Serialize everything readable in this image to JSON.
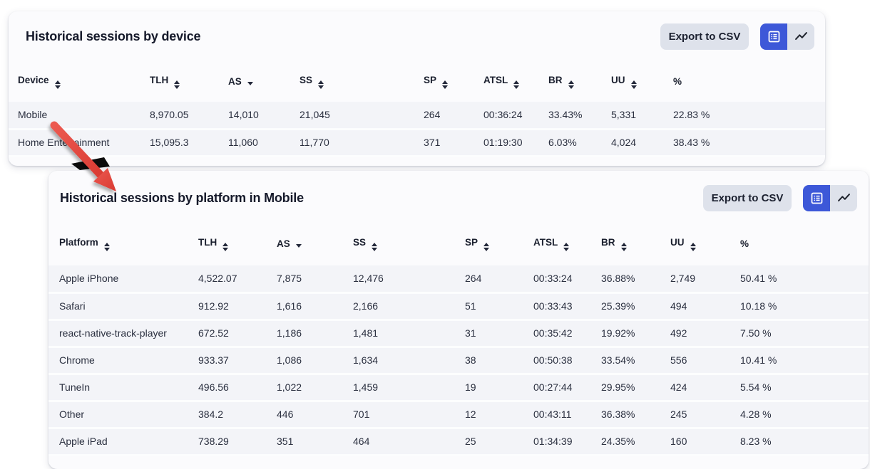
{
  "card1": {
    "title": "Historical sessions by device",
    "export_label": "Export to CSV",
    "columns": [
      {
        "label": "Device",
        "sort": "both"
      },
      {
        "label": "TLH",
        "sort": "both"
      },
      {
        "label": "AS",
        "sort": "desc"
      },
      {
        "label": "SS",
        "sort": "both"
      },
      {
        "label": "SP",
        "sort": "both"
      },
      {
        "label": "ATSL",
        "sort": "both"
      },
      {
        "label": "BR",
        "sort": "both"
      },
      {
        "label": "UU",
        "sort": "both"
      },
      {
        "label": "%",
        "sort": "none"
      }
    ],
    "rows": [
      [
        "Mobile",
        "8,970.05",
        "14,010",
        "21,045",
        "264",
        "00:36:24",
        "33.43%",
        "5,331",
        "22.83 %"
      ],
      [
        "Home Entertainment",
        "15,095.3",
        "11,060",
        "11,770",
        "371",
        "01:19:30",
        "6.03%",
        "4,024",
        "38.43 %"
      ]
    ]
  },
  "card2": {
    "title": "Historical sessions by platform in Mobile",
    "export_label": "Export to CSV",
    "columns": [
      {
        "label": "Platform",
        "sort": "both"
      },
      {
        "label": "TLH",
        "sort": "both"
      },
      {
        "label": "AS",
        "sort": "desc"
      },
      {
        "label": "SS",
        "sort": "both"
      },
      {
        "label": "SP",
        "sort": "both"
      },
      {
        "label": "ATSL",
        "sort": "both"
      },
      {
        "label": "BR",
        "sort": "both"
      },
      {
        "label": "UU",
        "sort": "both"
      },
      {
        "label": "%",
        "sort": "none"
      }
    ],
    "rows": [
      [
        "Apple iPhone",
        "4,522.07",
        "7,875",
        "12,476",
        "264",
        "00:33:24",
        "36.88%",
        "2,749",
        "50.41 %"
      ],
      [
        "Safari",
        "912.92",
        "1,616",
        "2,166",
        "51",
        "00:33:43",
        "25.39%",
        "494",
        "10.18 %"
      ],
      [
        "react-native-track-player",
        "672.52",
        "1,186",
        "1,481",
        "31",
        "00:35:42",
        "19.92%",
        "492",
        "7.50 %"
      ],
      [
        "Chrome",
        "933.37",
        "1,086",
        "1,634",
        "38",
        "00:50:38",
        "33.54%",
        "556",
        "10.41 %"
      ],
      [
        "TuneIn",
        "496.56",
        "1,022",
        "1,459",
        "19",
        "00:27:44",
        "29.95%",
        "424",
        "5.54 %"
      ],
      [
        "Other",
        "384.2",
        "446",
        "701",
        "12",
        "00:43:11",
        "36.38%",
        "245",
        "4.28 %"
      ],
      [
        "Apple iPad",
        "738.29",
        "351",
        "464",
        "25",
        "01:34:39",
        "24.35%",
        "160",
        "8.23 %"
      ]
    ]
  },
  "colors": {
    "accent_blue": "#3d58d8",
    "arrow_red": "#e2433c",
    "row_background": "#f3f4f8",
    "button_background": "#dee2eb"
  }
}
